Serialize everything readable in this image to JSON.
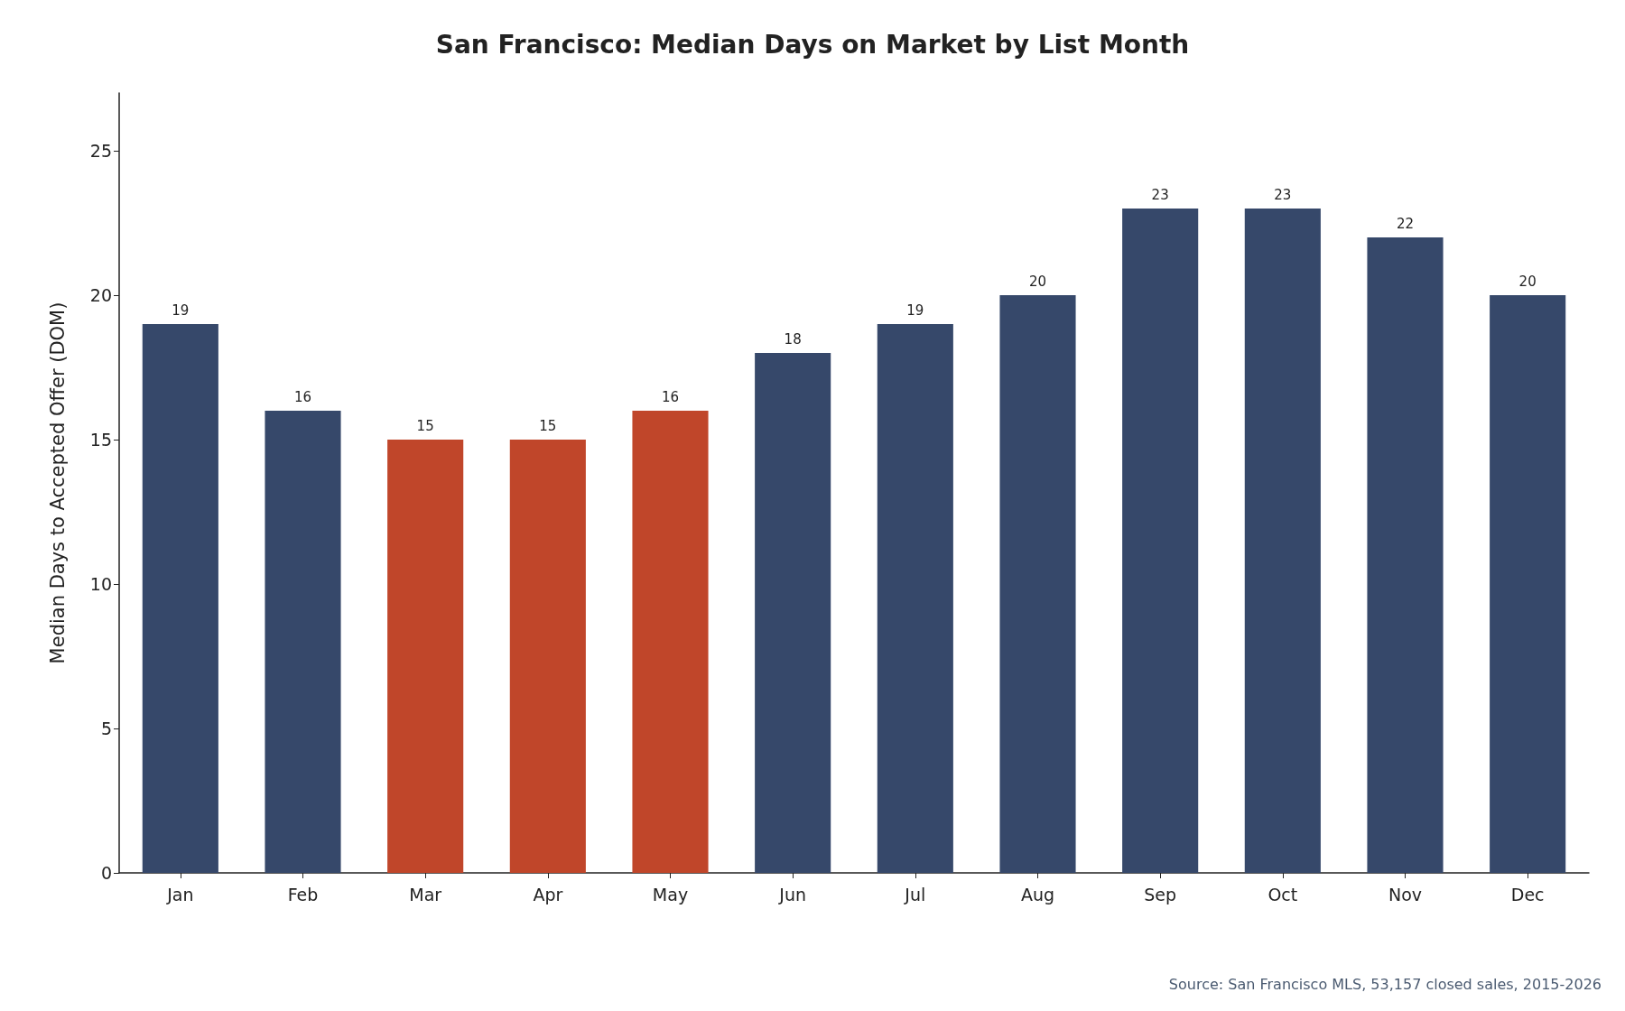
{
  "chart_data": {
    "type": "bar",
    "title": "San Francisco: Median Days on Market by List Month",
    "ylabel": "Median Days to Accepted Offer (DOM)",
    "categories": [
      "Jan",
      "Feb",
      "Mar",
      "Apr",
      "May",
      "Jun",
      "Jul",
      "Aug",
      "Sep",
      "Oct",
      "Nov",
      "Dec"
    ],
    "values": [
      19,
      16,
      15,
      15,
      16,
      18,
      19,
      20,
      23,
      23,
      22,
      20
    ],
    "colors": [
      "#36486a",
      "#36486a",
      "#c0462a",
      "#c0462a",
      "#c0462a",
      "#36486a",
      "#36486a",
      "#36486a",
      "#36486a",
      "#36486a",
      "#36486a",
      "#36486a"
    ],
    "ylim": [
      0,
      27
    ],
    "yticks": [
      0,
      5,
      10,
      15,
      20,
      25
    ],
    "grid": false,
    "data_labels": true,
    "annotations": [
      "Source: San Francisco MLS, 53,157 closed sales, 2015-2026"
    ]
  }
}
